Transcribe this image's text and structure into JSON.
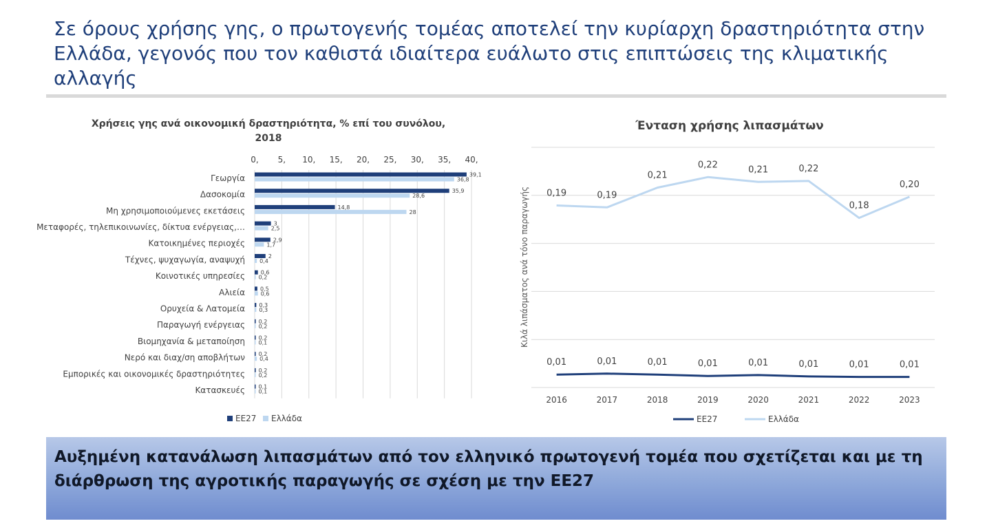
{
  "slide": {
    "title": "Σε όρους χρήσης γης, ο πρωτογενής τομέας αποτελεί την κυρίαρχη δραστηριότητα στην Ελλάδα, γεγονός που τον καθιστά ιδιαίτερα ευάλωτο στις επιπτώσεις της κλιματικής αλλαγής",
    "banner": "Αυξημένη κατανάλωση λιπασμάτων από τον ελληνικό πρωτογενή τομέα που σχετίζεται και με τη διάρθρωση της αγροτικής παραγωγής σε σχέση με την ΕΕ27"
  },
  "colors": {
    "eu27": "#1f3f7a",
    "greece": "#bdd7f0",
    "title": "#1f3f7a",
    "grid": "#d9d9d9"
  },
  "chart_data": [
    {
      "type": "bar",
      "orientation": "horizontal",
      "title_line1": "Χρήσεις γης ανά οικονομική δραστηριότητα, % επί του συνόλου,",
      "title_line2": "2018",
      "xlim": [
        0,
        40
      ],
      "x_ticks": [
        "0,",
        "5,",
        "10,",
        "15,",
        "20,",
        "25,",
        "30,",
        "35,",
        "40,"
      ],
      "legend_position": "bottom",
      "categories": [
        "Γεωργία",
        "Δασοκομία",
        "Μη χρησιμοποιούμενες εκετάσεις",
        "Μεταφορές, τηλεπικοινωνίες, δίκτυα ενέργειας,…",
        "Κατοικημένες περιοχές",
        "Τέχνες, ψυχαγωγία, αναψυχή",
        "Κοινοτικές υπηρεσίες",
        "Αλιεία",
        "Ορυχεία & Λατομεία",
        "Παραγωγή ενέργειας",
        "Βιομηχανία & μεταποίηση",
        "Νερό και διαχ/ση αποβλήτων",
        "Εμπορικές και οικονομικές δραστηριότητες",
        "Κατασκευές"
      ],
      "series": [
        {
          "name": "ΕΕ27",
          "values": [
            39.1,
            35.9,
            14.8,
            3,
            2.9,
            2,
            0.6,
            0.5,
            0.3,
            0.2,
            0.2,
            0.2,
            0.2,
            0.1
          ],
          "labels": [
            "39,1",
            "35,9",
            "14,8",
            "3",
            "2,9",
            "2",
            "0,6",
            "0,5",
            "0,3",
            "0,2",
            "0,2",
            "0,2",
            "0,2",
            "0,1"
          ]
        },
        {
          "name": "Ελλάδα",
          "values": [
            36.8,
            28.6,
            28,
            2.5,
            1.7,
            0.4,
            0.2,
            0.6,
            0.3,
            0.2,
            0.1,
            0.4,
            0.2,
            0.1
          ],
          "labels": [
            "36,8",
            "28,6",
            "28",
            "2,5",
            "1,7",
            "0,4",
            "0,2",
            "0,6",
            "0,3",
            "0,2",
            "0,1",
            "0,4",
            "0,2",
            "0,1"
          ]
        }
      ]
    },
    {
      "type": "line",
      "title": "Ένταση χρήσης λιπασμάτων",
      "ylabel": "Κιλά λιπάσματος ανά τόνο παραγωγής",
      "ylim": [
        0,
        0.25
      ],
      "grid": true,
      "legend_position": "bottom",
      "x": [
        "2016",
        "2017",
        "2018",
        "2019",
        "2020",
        "2021",
        "2022",
        "2023"
      ],
      "series": [
        {
          "name": "ΕΕ27",
          "values": [
            0.0135,
            0.0145,
            0.0135,
            0.012,
            0.013,
            0.0115,
            0.011,
            0.011
          ],
          "labels": [
            "0,01",
            "0,01",
            "0,01",
            "0,01",
            "0,01",
            "0,01",
            "0,01",
            "0,01"
          ]
        },
        {
          "name": "Ελλάδα",
          "values": [
            0.1895,
            0.1875,
            0.208,
            0.219,
            0.214,
            0.215,
            0.1765,
            0.1985
          ],
          "labels": [
            "0,19",
            "0,19",
            "0,21",
            "0,22",
            "0,21",
            "0,22",
            "0,18",
            "0,20"
          ]
        }
      ]
    }
  ]
}
